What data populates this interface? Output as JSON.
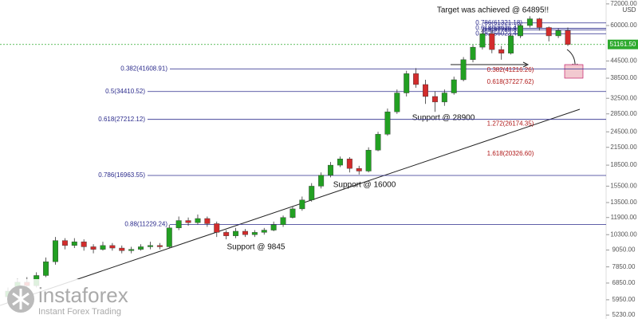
{
  "chart_data": {
    "type": "candlestick",
    "currency": "USD",
    "log_scale": true,
    "up_color": "#22a022",
    "down_color": "#d22c2c",
    "candles": [
      [
        6100,
        6600,
        5900,
        6400
      ],
      [
        6400,
        7100,
        6300,
        6900
      ],
      [
        6900,
        7200,
        6500,
        6700
      ],
      [
        6700,
        7500,
        6600,
        7300
      ],
      [
        7300,
        8500,
        7200,
        8200
      ],
      [
        8200,
        10100,
        8000,
        9800
      ],
      [
        9800,
        10000,
        9100,
        9400
      ],
      [
        9400,
        10000,
        9200,
        9700
      ],
      [
        9700,
        9900,
        9000,
        9300
      ],
      [
        9300,
        9500,
        8800,
        9100
      ],
      [
        9100,
        9700,
        9000,
        9400
      ],
      [
        9400,
        9600,
        9000,
        9200
      ],
      [
        9200,
        9400,
        8800,
        9000
      ],
      [
        9000,
        9300,
        8800,
        9100
      ],
      [
        9100,
        9500,
        9000,
        9300
      ],
      [
        9300,
        9700,
        9100,
        9400
      ],
      [
        9400,
        9600,
        9100,
        9300
      ],
      [
        9300,
        11200,
        9200,
        10900
      ],
      [
        10900,
        12000,
        10700,
        11600
      ],
      [
        11600,
        11900,
        11100,
        11400
      ],
      [
        11400,
        12200,
        11200,
        11800
      ],
      [
        11800,
        12000,
        11000,
        11300
      ],
      [
        11300,
        11500,
        10100,
        10500
      ],
      [
        10500,
        10700,
        9900,
        10200
      ],
      [
        10200,
        10900,
        10000,
        10600
      ],
      [
        10600,
        10800,
        10100,
        10300
      ],
      [
        10300,
        10700,
        10100,
        10500
      ],
      [
        10500,
        10900,
        10300,
        10700
      ],
      [
        10700,
        11500,
        10600,
        11200
      ],
      [
        11200,
        12100,
        11000,
        11900
      ],
      [
        11900,
        13100,
        11800,
        12800
      ],
      [
        12800,
        14200,
        12600,
        13800
      ],
      [
        13800,
        15900,
        13600,
        15500
      ],
      [
        15500,
        17400,
        15200,
        17000
      ],
      [
        17000,
        19000,
        16700,
        18500
      ],
      [
        18500,
        19900,
        18200,
        19500
      ],
      [
        19500,
        19800,
        17400,
        18000
      ],
      [
        18000,
        18400,
        17100,
        17600
      ],
      [
        17600,
        21500,
        17400,
        21000
      ],
      [
        21000,
        24500,
        20800,
        24000
      ],
      [
        24000,
        29800,
        23700,
        29000
      ],
      [
        29000,
        35000,
        28500,
        34000
      ],
      [
        34000,
        41000,
        33000,
        40000
      ],
      [
        40000,
        41900,
        35500,
        36500
      ],
      [
        36500,
        38000,
        31000,
        33000
      ],
      [
        33000,
        34500,
        29000,
        31500
      ],
      [
        31500,
        35000,
        30500,
        34000
      ],
      [
        34000,
        39000,
        33500,
        38000
      ],
      [
        38000,
        46000,
        37500,
        45000
      ],
      [
        45000,
        51000,
        44000,
        50000
      ],
      [
        50000,
        58000,
        49000,
        56000
      ],
      [
        56000,
        57500,
        47500,
        49000
      ],
      [
        49000,
        50500,
        45000,
        47500
      ],
      [
        47500,
        56000,
        47000,
        55000
      ],
      [
        55000,
        61000,
        54000,
        60000
      ],
      [
        60000,
        64895,
        59000,
        63500
      ],
      [
        63500,
        64000,
        57500,
        59000
      ],
      [
        59000,
        59500,
        52500,
        55000
      ],
      [
        55000,
        58500,
        54000,
        57500
      ],
      [
        57500,
        59000,
        50500,
        51161.5
      ]
    ],
    "ylim": [
      5060,
      74400
    ],
    "yticks": [
      {
        "value": 72000,
        "label": "72000.00"
      },
      {
        "value": 60000,
        "label": "60000.00"
      },
      {
        "value": 44500,
        "label": "44500.00"
      },
      {
        "value": 38500,
        "label": "38500.00"
      },
      {
        "value": 32500,
        "label": "32500.00"
      },
      {
        "value": 28500,
        "label": "28500.00"
      },
      {
        "value": 24500,
        "label": "24500.00"
      },
      {
        "value": 21500,
        "label": "21500.00"
      },
      {
        "value": 18500,
        "label": "18500.00"
      },
      {
        "value": 15500,
        "label": "15500.00"
      },
      {
        "value": 13500,
        "label": "13500.00"
      },
      {
        "value": 11900,
        "label": "11900.00"
      },
      {
        "value": 10300,
        "label": "10300.00"
      },
      {
        "value": 9050,
        "label": "9050.00"
      },
      {
        "value": 7850,
        "label": "7850.00"
      },
      {
        "value": 6850,
        "label": "6850.00"
      },
      {
        "value": 5950,
        "label": "5950.00"
      },
      {
        "value": 5230,
        "label": "5230.00"
      }
    ],
    "current_price": {
      "value": 51161.5,
      "label": "51161.50"
    },
    "fib_levels": [
      {
        "label": "0.382(41608.91)",
        "value": 41608.91
      },
      {
        "label": "0.5(34410.52)",
        "value": 34410.52
      },
      {
        "label": "0.618(27212.12)",
        "value": 27212.12
      },
      {
        "label": "0.786(16963.55)",
        "value": 16963.55
      },
      {
        "label": "0.88(11229.24)",
        "value": 11229.24
      }
    ],
    "upper_fib_levels": [
      {
        "label": "0.786(61321.18)",
        "value": 61321.18
      },
      {
        "label": "0.618(58626.47)",
        "value": 58626.47
      },
      {
        "label": "0.5(57786.81)",
        "value": 57786.81
      },
      {
        "label": "0.382(56023.44)",
        "value": 56023.44
      }
    ],
    "projection_levels": [
      {
        "label": "0.382(41216.26)",
        "value": 41216.26
      },
      {
        "label": "0.618(37227.62)",
        "value": 37227.62
      },
      {
        "label": "1.272(26174.35)",
        "value": 26174.35
      },
      {
        "label": "1.618(20326.60)",
        "value": 20326.6
      }
    ],
    "annotations": [
      "Target was achieved @ 64895!!",
      "Support @ 28900",
      "Support @ 16000",
      "Support @ 9845"
    ]
  },
  "watermark": {
    "brand": "instaforex",
    "tagline": "Instant Forex Trading"
  }
}
